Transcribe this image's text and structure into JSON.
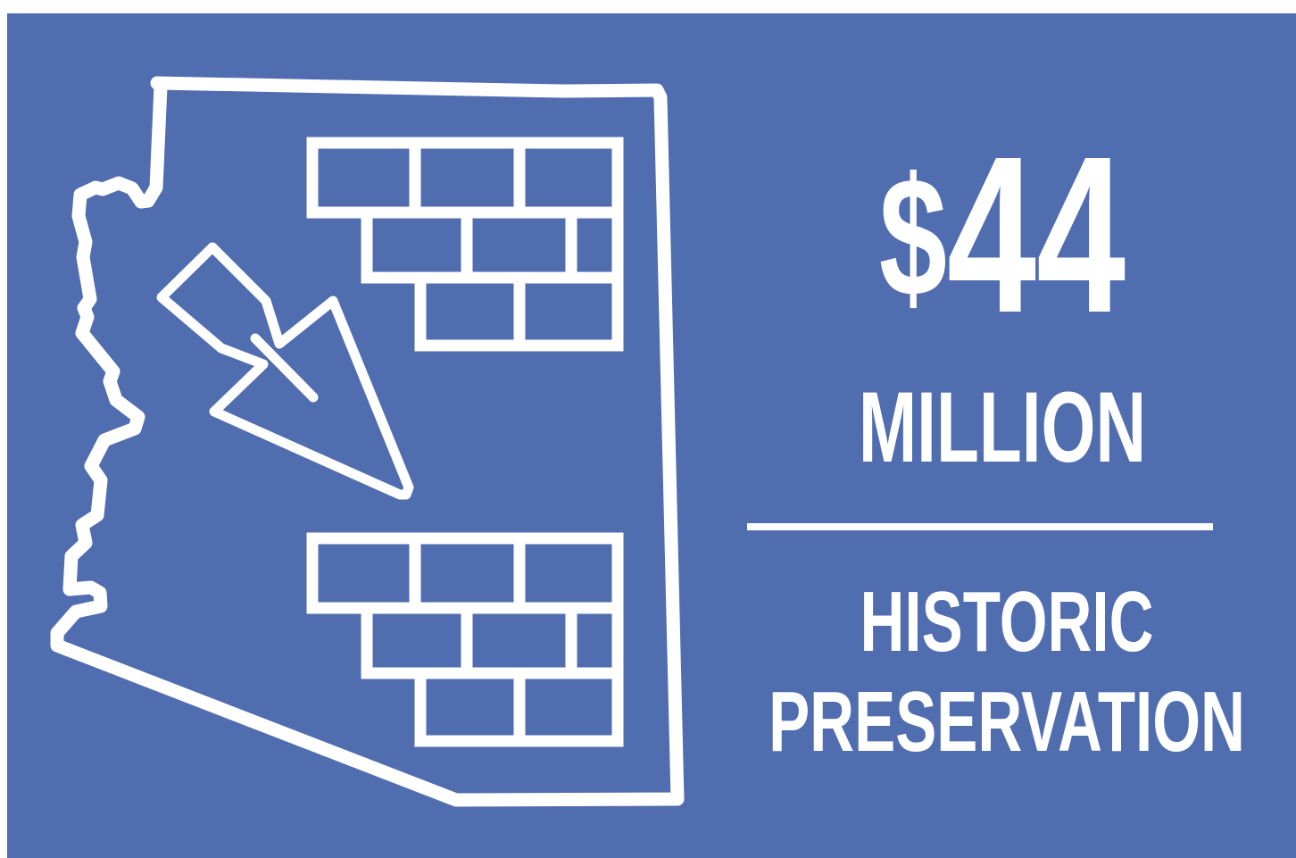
{
  "graphic": {
    "background_color": "#506db0",
    "line_color": "#ffffff",
    "state_icon": "arizona-outline-icon",
    "tool_icon": "trowel-icon",
    "wall_icon": "brick-wall-icon"
  },
  "stat": {
    "currency": "$",
    "amount": "44",
    "unit": "MILLION"
  },
  "category": {
    "line1": "HISTORIC",
    "line2": "PRESERVATION"
  }
}
